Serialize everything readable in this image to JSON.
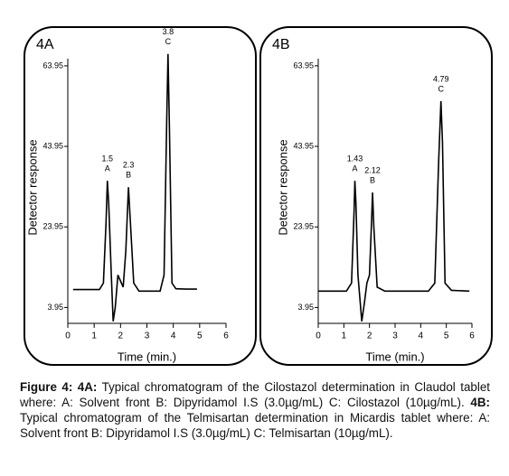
{
  "chart_data": [
    {
      "type": "line",
      "title": "4A",
      "ylabel": "Detector response",
      "xlabel": "Time (min.)",
      "xlim": [
        0,
        6
      ],
      "xticks": [
        0,
        1,
        2,
        3,
        4,
        5,
        6
      ],
      "ylim": [
        0,
        72
      ],
      "yticks": [
        3.95,
        23.95,
        43.95,
        63.95
      ],
      "color": "#000000",
      "x": [
        0.2,
        1.2,
        1.35,
        1.45,
        1.5,
        1.55,
        1.65,
        1.72,
        1.8,
        1.9,
        2.1,
        2.2,
        2.3,
        2.4,
        2.5,
        2.7,
        3.0,
        3.5,
        3.65,
        3.75,
        3.8,
        3.85,
        3.95,
        4.1,
        4.5,
        4.9
      ],
      "values": [
        8.4,
        8.4,
        10,
        25,
        35.4,
        30,
        12,
        0.5,
        4,
        12,
        9,
        18,
        33.8,
        22,
        10,
        8,
        8,
        8,
        12,
        50,
        66.9,
        50,
        10,
        8.6,
        8.5,
        8.5
      ],
      "annotations": [
        {
          "x": 1.5,
          "text": "1.5",
          "letter": "A"
        },
        {
          "x": 2.3,
          "text": "2.3",
          "letter": "B"
        },
        {
          "x": 3.8,
          "text": "3.8",
          "letter": "C"
        }
      ]
    },
    {
      "type": "line",
      "title": "4B",
      "ylabel": "Detector response",
      "xlabel": "Time (min.)",
      "xlim": [
        0,
        6
      ],
      "xticks": [
        0,
        1,
        2,
        3,
        4,
        5,
        6
      ],
      "ylim": [
        0,
        72
      ],
      "yticks": [
        3.95,
        23.95,
        43.95,
        63.95
      ],
      "color": "#000000",
      "x": [
        0,
        1.1,
        1.3,
        1.4,
        1.43,
        1.47,
        1.55,
        1.7,
        1.8,
        1.9,
        2.0,
        2.08,
        2.12,
        2.17,
        2.3,
        2.6,
        3.5,
        4.3,
        4.55,
        4.7,
        4.79,
        4.85,
        4.95,
        5.2,
        5.9
      ],
      "values": [
        8,
        8,
        10,
        28,
        35.4,
        30,
        12,
        0.5,
        5,
        10,
        12,
        25,
        32.5,
        24,
        9,
        8,
        8,
        8,
        10,
        40,
        55.2,
        45,
        10,
        8.2,
        8
      ],
      "annotations": [
        {
          "x": 1.43,
          "text": "1.43",
          "letter": "A"
        },
        {
          "x": 2.12,
          "text": "2.12",
          "letter": "B"
        },
        {
          "x": 4.79,
          "text": "4.79",
          "letter": "C"
        }
      ]
    }
  ],
  "caption": {
    "figure": "Figure 4:",
    "a_label": "4A:",
    "a_text": "Typical chromatogram of the Cilostazol determination in Claudol tablet where: A: Solvent front B: Dipyridamol I.S (3.0µg/mL) C: Cilostazol (10µg/mL).",
    "b_label": "4B:",
    "b_text": "Typical chromatogram of the Telmisartan determination in Micardis tablet where: A: Solvent front B: Dipyridamol I.S (3.0µg/mL) C: Telmisartan (10µg/mL)."
  }
}
